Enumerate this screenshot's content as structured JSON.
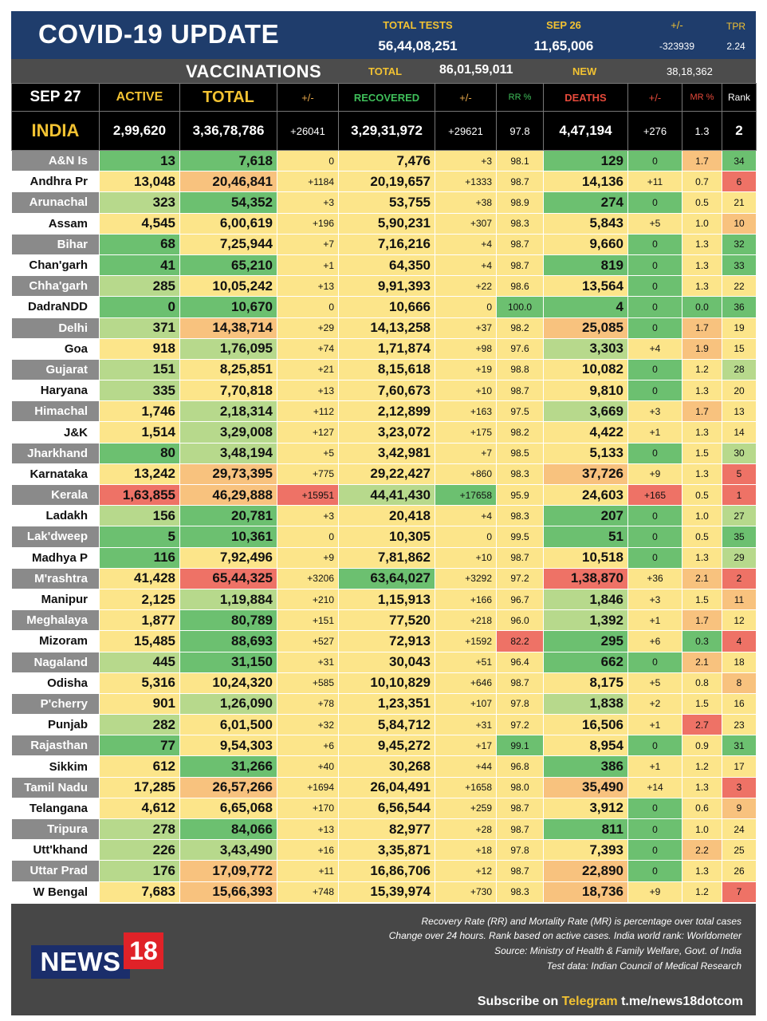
{
  "banner": {
    "title": "COVID-19 UPDATE",
    "total_tests_label": "TOTAL TESTS",
    "total_tests_value": "56,44,08,251",
    "date_label": "SEP 26",
    "date_value": "11,65,006",
    "delta_label": "+/-",
    "delta_value": "-323939",
    "tpr_label": "TPR",
    "tpr_value": "2.24"
  },
  "vaccinations": {
    "title": "VACCINATIONS",
    "total_label": "TOTAL",
    "total_value": "86,01,59,011",
    "new_label": "NEW",
    "new_value": "38,18,362"
  },
  "header": {
    "date": "SEP 27",
    "active": "ACTIVE",
    "total": "TOTAL",
    "total_delta": "+/-",
    "recovered": "RECOVERED",
    "recovered_delta": "+/-",
    "rr": "RR %",
    "deaths": "DEATHS",
    "deaths_delta": "+/-",
    "mr": "MR %",
    "rank": "Rank"
  },
  "india": {
    "name": "INDIA",
    "active": "2,99,620",
    "total": "3,36,78,786",
    "total_delta": "+26041",
    "recovered": "3,29,31,972",
    "recovered_delta": "+29621",
    "rr": "97.8",
    "deaths": "4,47,194",
    "deaths_delta": "+276",
    "mr": "1.3",
    "rank": "2"
  },
  "colors": {
    "banner_blue": "#1f3d6c",
    "accent_yellow": "#f2c232",
    "recovered_green": "#3fbf5a",
    "deaths_red": "#e74a3b",
    "logo_red": "#e02228",
    "logo_blue": "#1b2e6b",
    "cell_green": "#6cc070",
    "cell_lightgreen": "#b7d98c",
    "cell_yellow": "#fce58a",
    "cell_orange": "#f8c27e",
    "cell_red": "#ee7266"
  },
  "states": [
    {
      "name": "A&N Is",
      "active": "13",
      "total": "7,618",
      "total_delta": "0",
      "recovered": "7,476",
      "recovered_delta": "+3",
      "rr": "98.1",
      "deaths": "129",
      "deaths_delta": "0",
      "mr": "1.7",
      "rank": "34",
      "c": [
        "g",
        "g",
        "y",
        "y",
        "y",
        "y",
        "g",
        "g",
        "o",
        "g"
      ]
    },
    {
      "name": "Andhra Pr",
      "active": "13,048",
      "total": "20,46,841",
      "total_delta": "+1184",
      "recovered": "20,19,657",
      "recovered_delta": "+1333",
      "rr": "98.7",
      "deaths": "14,136",
      "deaths_delta": "+11",
      "mr": "0.7",
      "rank": "6",
      "c": [
        "y",
        "o",
        "y",
        "y",
        "y",
        "y",
        "y",
        "y",
        "y",
        "r"
      ]
    },
    {
      "name": "Arunachal",
      "active": "323",
      "total": "54,352",
      "total_delta": "+3",
      "recovered": "53,755",
      "recovered_delta": "+38",
      "rr": "98.9",
      "deaths": "274",
      "deaths_delta": "0",
      "mr": "0.5",
      "rank": "21",
      "c": [
        "l",
        "g",
        "y",
        "y",
        "y",
        "y",
        "g",
        "g",
        "y",
        "y"
      ]
    },
    {
      "name": "Assam",
      "active": "4,545",
      "total": "6,00,619",
      "total_delta": "+196",
      "recovered": "5,90,231",
      "recovered_delta": "+307",
      "rr": "98.3",
      "deaths": "5,843",
      "deaths_delta": "+5",
      "mr": "1.0",
      "rank": "10",
      "c": [
        "y",
        "y",
        "y",
        "y",
        "y",
        "y",
        "y",
        "y",
        "y",
        "o"
      ]
    },
    {
      "name": "Bihar",
      "active": "68",
      "total": "7,25,944",
      "total_delta": "+7",
      "recovered": "7,16,216",
      "recovered_delta": "+4",
      "rr": "98.7",
      "deaths": "9,660",
      "deaths_delta": "0",
      "mr": "1.3",
      "rank": "32",
      "c": [
        "g",
        "y",
        "y",
        "y",
        "y",
        "y",
        "y",
        "g",
        "y",
        "g"
      ]
    },
    {
      "name": "Chan'garh",
      "active": "41",
      "total": "65,210",
      "total_delta": "+1",
      "recovered": "64,350",
      "recovered_delta": "+4",
      "rr": "98.7",
      "deaths": "819",
      "deaths_delta": "0",
      "mr": "1.3",
      "rank": "33",
      "c": [
        "g",
        "g",
        "y",
        "y",
        "y",
        "y",
        "g",
        "g",
        "y",
        "g"
      ]
    },
    {
      "name": "Chha'garh",
      "active": "285",
      "total": "10,05,242",
      "total_delta": "+13",
      "recovered": "9,91,393",
      "recovered_delta": "+22",
      "rr": "98.6",
      "deaths": "13,564",
      "deaths_delta": "0",
      "mr": "1.3",
      "rank": "22",
      "c": [
        "l",
        "y",
        "y",
        "y",
        "y",
        "y",
        "y",
        "g",
        "y",
        "y"
      ]
    },
    {
      "name": "DadraNDD",
      "active": "0",
      "total": "10,670",
      "total_delta": "0",
      "recovered": "10,666",
      "recovered_delta": "0",
      "rr": "100.0",
      "deaths": "4",
      "deaths_delta": "0",
      "mr": "0.0",
      "rank": "36",
      "c": [
        "g",
        "g",
        "y",
        "y",
        "y",
        "g",
        "g",
        "g",
        "g",
        "g"
      ]
    },
    {
      "name": "Delhi",
      "active": "371",
      "total": "14,38,714",
      "total_delta": "+29",
      "recovered": "14,13,258",
      "recovered_delta": "+37",
      "rr": "98.2",
      "deaths": "25,085",
      "deaths_delta": "0",
      "mr": "1.7",
      "rank": "19",
      "c": [
        "l",
        "o",
        "y",
        "y",
        "y",
        "y",
        "o",
        "g",
        "o",
        "y"
      ]
    },
    {
      "name": "Goa",
      "active": "918",
      "total": "1,76,095",
      "total_delta": "+74",
      "recovered": "1,71,874",
      "recovered_delta": "+98",
      "rr": "97.6",
      "deaths": "3,303",
      "deaths_delta": "+4",
      "mr": "1.9",
      "rank": "15",
      "c": [
        "y",
        "l",
        "y",
        "y",
        "y",
        "y",
        "l",
        "y",
        "o",
        "y"
      ]
    },
    {
      "name": "Gujarat",
      "active": "151",
      "total": "8,25,851",
      "total_delta": "+21",
      "recovered": "8,15,618",
      "recovered_delta": "+19",
      "rr": "98.8",
      "deaths": "10,082",
      "deaths_delta": "0",
      "mr": "1.2",
      "rank": "28",
      "c": [
        "l",
        "y",
        "y",
        "y",
        "y",
        "y",
        "y",
        "g",
        "y",
        "l"
      ]
    },
    {
      "name": "Haryana",
      "active": "335",
      "total": "7,70,818",
      "total_delta": "+13",
      "recovered": "7,60,673",
      "recovered_delta": "+10",
      "rr": "98.7",
      "deaths": "9,810",
      "deaths_delta": "0",
      "mr": "1.3",
      "rank": "20",
      "c": [
        "l",
        "y",
        "y",
        "y",
        "y",
        "y",
        "y",
        "g",
        "y",
        "y"
      ]
    },
    {
      "name": "Himachal",
      "active": "1,746",
      "total": "2,18,314",
      "total_delta": "+112",
      "recovered": "2,12,899",
      "recovered_delta": "+163",
      "rr": "97.5",
      "deaths": "3,669",
      "deaths_delta": "+3",
      "mr": "1.7",
      "rank": "13",
      "c": [
        "y",
        "l",
        "y",
        "y",
        "y",
        "y",
        "l",
        "y",
        "o",
        "y"
      ]
    },
    {
      "name": "J&K",
      "active": "1,514",
      "total": "3,29,008",
      "total_delta": "+127",
      "recovered": "3,23,072",
      "recovered_delta": "+175",
      "rr": "98.2",
      "deaths": "4,422",
      "deaths_delta": "+1",
      "mr": "1.3",
      "rank": "14",
      "c": [
        "y",
        "l",
        "y",
        "y",
        "y",
        "y",
        "y",
        "y",
        "y",
        "y"
      ]
    },
    {
      "name": "Jharkhand",
      "active": "80",
      "total": "3,48,194",
      "total_delta": "+5",
      "recovered": "3,42,981",
      "recovered_delta": "+7",
      "rr": "98.5",
      "deaths": "5,133",
      "deaths_delta": "0",
      "mr": "1.5",
      "rank": "30",
      "c": [
        "g",
        "l",
        "y",
        "y",
        "y",
        "y",
        "y",
        "g",
        "y",
        "l"
      ]
    },
    {
      "name": "Karnataka",
      "active": "13,242",
      "total": "29,73,395",
      "total_delta": "+775",
      "recovered": "29,22,427",
      "recovered_delta": "+860",
      "rr": "98.3",
      "deaths": "37,726",
      "deaths_delta": "+9",
      "mr": "1.3",
      "rank": "5",
      "c": [
        "y",
        "o",
        "y",
        "y",
        "y",
        "y",
        "o",
        "y",
        "y",
        "r"
      ]
    },
    {
      "name": "Kerala",
      "active": "1,63,855",
      "total": "46,29,888",
      "total_delta": "+15951",
      "recovered": "44,41,430",
      "recovered_delta": "+17658",
      "rr": "95.9",
      "deaths": "24,603",
      "deaths_delta": "+165",
      "mr": "0.5",
      "rank": "1",
      "c": [
        "r",
        "o",
        "r",
        "l",
        "g",
        "y",
        "y",
        "r",
        "y",
        "r"
      ]
    },
    {
      "name": "Ladakh",
      "active": "156",
      "total": "20,781",
      "total_delta": "+3",
      "recovered": "20,418",
      "recovered_delta": "+4",
      "rr": "98.3",
      "deaths": "207",
      "deaths_delta": "0",
      "mr": "1.0",
      "rank": "27",
      "c": [
        "l",
        "g",
        "y",
        "y",
        "y",
        "y",
        "g",
        "g",
        "y",
        "l"
      ]
    },
    {
      "name": "Lak'dweep",
      "active": "5",
      "total": "10,361",
      "total_delta": "0",
      "recovered": "10,305",
      "recovered_delta": "0",
      "rr": "99.5",
      "deaths": "51",
      "deaths_delta": "0",
      "mr": "0.5",
      "rank": "35",
      "c": [
        "g",
        "g",
        "y",
        "y",
        "y",
        "y",
        "g",
        "g",
        "y",
        "g"
      ]
    },
    {
      "name": "Madhya P",
      "active": "116",
      "total": "7,92,496",
      "total_delta": "+9",
      "recovered": "7,81,862",
      "recovered_delta": "+10",
      "rr": "98.7",
      "deaths": "10,518",
      "deaths_delta": "0",
      "mr": "1.3",
      "rank": "29",
      "c": [
        "g",
        "y",
        "y",
        "y",
        "y",
        "y",
        "y",
        "g",
        "y",
        "l"
      ]
    },
    {
      "name": "M'rashtra",
      "active": "41,428",
      "total": "65,44,325",
      "total_delta": "+3206",
      "recovered": "63,64,027",
      "recovered_delta": "+3292",
      "rr": "97.2",
      "deaths": "1,38,870",
      "deaths_delta": "+36",
      "mr": "2.1",
      "rank": "2",
      "c": [
        "y",
        "r",
        "y",
        "g",
        "y",
        "y",
        "r",
        "y",
        "o",
        "r"
      ]
    },
    {
      "name": "Manipur",
      "active": "2,125",
      "total": "1,19,884",
      "total_delta": "+210",
      "recovered": "1,15,913",
      "recovered_delta": "+166",
      "rr": "96.7",
      "deaths": "1,846",
      "deaths_delta": "+3",
      "mr": "1.5",
      "rank": "11",
      "c": [
        "y",
        "l",
        "y",
        "y",
        "y",
        "y",
        "l",
        "y",
        "y",
        "o"
      ]
    },
    {
      "name": "Meghalaya",
      "active": "1,877",
      "total": "80,789",
      "total_delta": "+151",
      "recovered": "77,520",
      "recovered_delta": "+218",
      "rr": "96.0",
      "deaths": "1,392",
      "deaths_delta": "+1",
      "mr": "1.7",
      "rank": "12",
      "c": [
        "y",
        "g",
        "y",
        "y",
        "y",
        "y",
        "l",
        "y",
        "o",
        "y"
      ]
    },
    {
      "name": "Mizoram",
      "active": "15,485",
      "total": "88,693",
      "total_delta": "+527",
      "recovered": "72,913",
      "recovered_delta": "+1592",
      "rr": "82.2",
      "deaths": "295",
      "deaths_delta": "+6",
      "mr": "0.3",
      "rank": "4",
      "c": [
        "y",
        "g",
        "y",
        "y",
        "y",
        "r",
        "g",
        "y",
        "g",
        "r"
      ]
    },
    {
      "name": "Nagaland",
      "active": "445",
      "total": "31,150",
      "total_delta": "+31",
      "recovered": "30,043",
      "recovered_delta": "+51",
      "rr": "96.4",
      "deaths": "662",
      "deaths_delta": "0",
      "mr": "2.1",
      "rank": "18",
      "c": [
        "l",
        "g",
        "y",
        "y",
        "y",
        "y",
        "g",
        "g",
        "o",
        "y"
      ]
    },
    {
      "name": "Odisha",
      "active": "5,316",
      "total": "10,24,320",
      "total_delta": "+585",
      "recovered": "10,10,829",
      "recovered_delta": "+646",
      "rr": "98.7",
      "deaths": "8,175",
      "deaths_delta": "+5",
      "mr": "0.8",
      "rank": "8",
      "c": [
        "y",
        "y",
        "y",
        "y",
        "y",
        "y",
        "y",
        "y",
        "y",
        "o"
      ]
    },
    {
      "name": "P'cherry",
      "active": "901",
      "total": "1,26,090",
      "total_delta": "+78",
      "recovered": "1,23,351",
      "recovered_delta": "+107",
      "rr": "97.8",
      "deaths": "1,838",
      "deaths_delta": "+2",
      "mr": "1.5",
      "rank": "16",
      "c": [
        "y",
        "l",
        "y",
        "y",
        "y",
        "y",
        "l",
        "y",
        "y",
        "y"
      ]
    },
    {
      "name": "Punjab",
      "active": "282",
      "total": "6,01,500",
      "total_delta": "+32",
      "recovered": "5,84,712",
      "recovered_delta": "+31",
      "rr": "97.2",
      "deaths": "16,506",
      "deaths_delta": "+1",
      "mr": "2.7",
      "rank": "23",
      "c": [
        "l",
        "y",
        "y",
        "y",
        "y",
        "y",
        "y",
        "y",
        "r",
        "y"
      ]
    },
    {
      "name": "Rajasthan",
      "active": "77",
      "total": "9,54,303",
      "total_delta": "+6",
      "recovered": "9,45,272",
      "recovered_delta": "+17",
      "rr": "99.1",
      "deaths": "8,954",
      "deaths_delta": "0",
      "mr": "0.9",
      "rank": "31",
      "c": [
        "g",
        "y",
        "y",
        "y",
        "y",
        "g",
        "y",
        "g",
        "y",
        "g"
      ]
    },
    {
      "name": "Sikkim",
      "active": "612",
      "total": "31,266",
      "total_delta": "+40",
      "recovered": "30,268",
      "recovered_delta": "+44",
      "rr": "96.8",
      "deaths": "386",
      "deaths_delta": "+1",
      "mr": "1.2",
      "rank": "17",
      "c": [
        "y",
        "g",
        "y",
        "y",
        "y",
        "y",
        "g",
        "y",
        "y",
        "y"
      ]
    },
    {
      "name": "Tamil Nadu",
      "active": "17,285",
      "total": "26,57,266",
      "total_delta": "+1694",
      "recovered": "26,04,491",
      "recovered_delta": "+1658",
      "rr": "98.0",
      "deaths": "35,490",
      "deaths_delta": "+14",
      "mr": "1.3",
      "rank": "3",
      "c": [
        "y",
        "o",
        "y",
        "y",
        "y",
        "y",
        "o",
        "y",
        "y",
        "r"
      ]
    },
    {
      "name": "Telangana",
      "active": "4,612",
      "total": "6,65,068",
      "total_delta": "+170",
      "recovered": "6,56,544",
      "recovered_delta": "+259",
      "rr": "98.7",
      "deaths": "3,912",
      "deaths_delta": "0",
      "mr": "0.6",
      "rank": "9",
      "c": [
        "y",
        "y",
        "y",
        "y",
        "y",
        "y",
        "y",
        "g",
        "y",
        "o"
      ]
    },
    {
      "name": "Tripura",
      "active": "278",
      "total": "84,066",
      "total_delta": "+13",
      "recovered": "82,977",
      "recovered_delta": "+28",
      "rr": "98.7",
      "deaths": "811",
      "deaths_delta": "0",
      "mr": "1.0",
      "rank": "24",
      "c": [
        "l",
        "g",
        "y",
        "y",
        "y",
        "y",
        "g",
        "g",
        "y",
        "y"
      ]
    },
    {
      "name": "Utt'khand",
      "active": "226",
      "total": "3,43,490",
      "total_delta": "+16",
      "recovered": "3,35,871",
      "recovered_delta": "+18",
      "rr": "97.8",
      "deaths": "7,393",
      "deaths_delta": "0",
      "mr": "2.2",
      "rank": "25",
      "c": [
        "l",
        "l",
        "y",
        "y",
        "y",
        "y",
        "y",
        "g",
        "o",
        "y"
      ]
    },
    {
      "name": "Uttar Prad",
      "active": "176",
      "total": "17,09,772",
      "total_delta": "+11",
      "recovered": "16,86,706",
      "recovered_delta": "+12",
      "rr": "98.7",
      "deaths": "22,890",
      "deaths_delta": "0",
      "mr": "1.3",
      "rank": "26",
      "c": [
        "l",
        "o",
        "y",
        "y",
        "y",
        "y",
        "o",
        "g",
        "y",
        "y"
      ]
    },
    {
      "name": "W Bengal",
      "active": "7,683",
      "total": "15,66,393",
      "total_delta": "+748",
      "recovered": "15,39,974",
      "recovered_delta": "+730",
      "rr": "98.3",
      "deaths": "18,736",
      "deaths_delta": "+9",
      "mr": "1.2",
      "rank": "7",
      "c": [
        "y",
        "o",
        "y",
        "y",
        "y",
        "y",
        "o",
        "y",
        "y",
        "r"
      ]
    }
  ],
  "footer": {
    "logo_news": "NEWS",
    "logo_18": "18",
    "notes": [
      "Recovery Rate (RR) and Mortality Rate (MR) is percentage over total cases",
      "Change over 24 hours. Rank based on active cases. India world rank: Worldometer",
      "Source: Ministry of Health & Family Welfare, Govt. of India",
      "Test data: Indian Council of Medical Research"
    ],
    "subscribe_prefix": "Subscribe on ",
    "subscribe_platform": "Telegram",
    "subscribe_link": " t.me/news18dotcom"
  }
}
